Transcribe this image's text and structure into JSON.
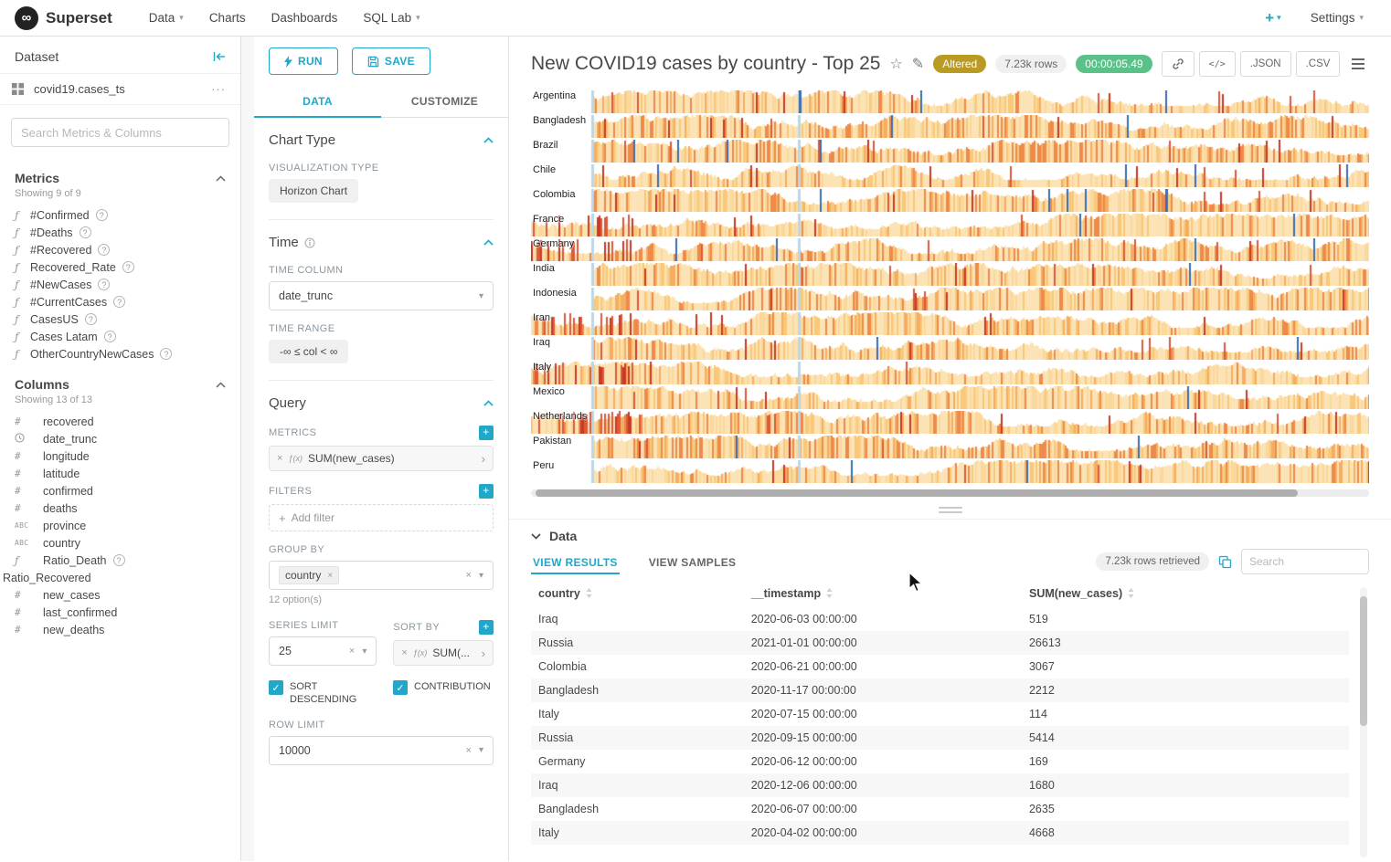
{
  "nav": {
    "brand": "Superset",
    "items": [
      {
        "label": "Data",
        "caret": true
      },
      {
        "label": "Charts",
        "caret": false
      },
      {
        "label": "Dashboards",
        "caret": false
      },
      {
        "label": "SQL Lab",
        "caret": true
      }
    ],
    "plus_label": "+",
    "settings_label": "Settings"
  },
  "dataset_panel": {
    "title": "Dataset",
    "dataset_name": "covid19.cases_ts",
    "more_label": "···",
    "search_placeholder": "Search Metrics & Columns",
    "metrics": {
      "title": "Metrics",
      "showing": "Showing 9 of 9",
      "items": [
        {
          "name": "#Confirmed"
        },
        {
          "name": "#Deaths"
        },
        {
          "name": "#Recovered"
        },
        {
          "name": "Recovered_Rate"
        },
        {
          "name": "#NewCases"
        },
        {
          "name": "#CurrentCases"
        },
        {
          "name": "CasesUS"
        },
        {
          "name": "Cases Latam"
        },
        {
          "name": "OtherCountryNewCases"
        }
      ]
    },
    "columns": {
      "title": "Columns",
      "showing": "Showing 13 of 13",
      "items": [
        {
          "name": "recovered",
          "type": "numeric"
        },
        {
          "name": "date_trunc",
          "type": "temporal"
        },
        {
          "name": "longitude",
          "type": "numeric"
        },
        {
          "name": "latitude",
          "type": "numeric"
        },
        {
          "name": "confirmed",
          "type": "numeric"
        },
        {
          "name": "deaths",
          "type": "numeric"
        },
        {
          "name": "province",
          "type": "text"
        },
        {
          "name": "country",
          "type": "text"
        },
        {
          "name": "Ratio_Death",
          "type": "function",
          "help": true
        },
        {
          "name": "Ratio_Recovered",
          "type": "none"
        },
        {
          "name": "new_cases",
          "type": "numeric"
        },
        {
          "name": "last_confirmed",
          "type": "numeric"
        },
        {
          "name": "new_deaths",
          "type": "numeric"
        }
      ]
    }
  },
  "controls": {
    "run_label": "RUN",
    "save_label": "SAVE",
    "tab_data": "DATA",
    "tab_customize": "CUSTOMIZE",
    "chart_type_section": "Chart Type",
    "viz_type_label": "VISUALIZATION TYPE",
    "viz_type_value": "Horizon Chart",
    "time_section": "Time",
    "time_column_label": "TIME COLUMN",
    "time_column_value": "date_trunc",
    "time_range_label": "TIME RANGE",
    "time_range_value": "-∞ ≤ col < ∞",
    "query_section": "Query",
    "metrics_label": "METRICS",
    "fx_badge": "ƒ(x)",
    "metric_value": "SUM(new_cases)",
    "filters_label": "FILTERS",
    "add_filter_label": "Add filter",
    "group_by_label": "GROUP BY",
    "group_by_value": "country",
    "group_by_hint": "12 option(s)",
    "series_limit_label": "SERIES LIMIT",
    "series_limit_value": "25",
    "sort_by_label": "SORT BY",
    "sort_by_value": "SUM(...",
    "sort_descending_label": "SORT DESCENDING",
    "contribution_label": "CONTRIBUTION",
    "row_limit_label": "ROW LIMIT",
    "row_limit_value": "10000"
  },
  "chart_header": {
    "title": "New COVID19 cases by country - Top 25",
    "altered_badge": "Altered",
    "rows_badge": "7.23k rows",
    "timer_badge": "00:00:05.49",
    "code_label": "</>",
    "json_label": ".JSON",
    "csv_label": ".CSV"
  },
  "chart_data": {
    "type": "area",
    "variant": "horizon",
    "title": "New COVID19 cases by country - Top 25",
    "metric": "SUM(new_cases)",
    "x_axis": "date_trunc",
    "series": [
      "Argentina",
      "Bangladesh",
      "Brazil",
      "Chile",
      "Colombia",
      "France",
      "Germany",
      "India",
      "Indonesia",
      "Iran",
      "Iraq",
      "Italy",
      "Mexico",
      "Netherlands",
      "Pakistan",
      "Peru"
    ],
    "early_start_series": [
      "France",
      "Germany",
      "Iran",
      "Italy",
      "Netherlands"
    ],
    "palette": [
      "#fce3b5",
      "#fbd89b",
      "#f9c878",
      "#f5ad62",
      "#ee8a4a",
      "#dd5a3a",
      "#c93a25"
    ],
    "accent_blue_light": "#b8d8ea",
    "accent_blue_dark": "#3c6fb1"
  },
  "results": {
    "section_title": "Data",
    "tab_results": "VIEW RESULTS",
    "tab_samples": "VIEW SAMPLES",
    "rows_retrieved": "7.23k rows retrieved",
    "search_placeholder": "Search",
    "columns": [
      "country",
      "__timestamp",
      "SUM(new_cases)"
    ],
    "rows": [
      [
        "Iraq",
        "2020-06-03 00:00:00",
        "519"
      ],
      [
        "Russia",
        "2021-01-01 00:00:00",
        "26613"
      ],
      [
        "Colombia",
        "2020-06-21 00:00:00",
        "3067"
      ],
      [
        "Bangladesh",
        "2020-11-17 00:00:00",
        "2212"
      ],
      [
        "Italy",
        "2020-07-15 00:00:00",
        "114"
      ],
      [
        "Russia",
        "2020-09-15 00:00:00",
        "5414"
      ],
      [
        "Germany",
        "2020-06-12 00:00:00",
        "169"
      ],
      [
        "Iraq",
        "2020-12-06 00:00:00",
        "1680"
      ],
      [
        "Bangladesh",
        "2020-06-07 00:00:00",
        "2635"
      ],
      [
        "Italy",
        "2020-04-02 00:00:00",
        "4668"
      ]
    ]
  },
  "colors": {
    "primary": "#20a7c9",
    "altered_badge_bg": "#b99a22",
    "timer_badge_bg": "#5ac189"
  }
}
